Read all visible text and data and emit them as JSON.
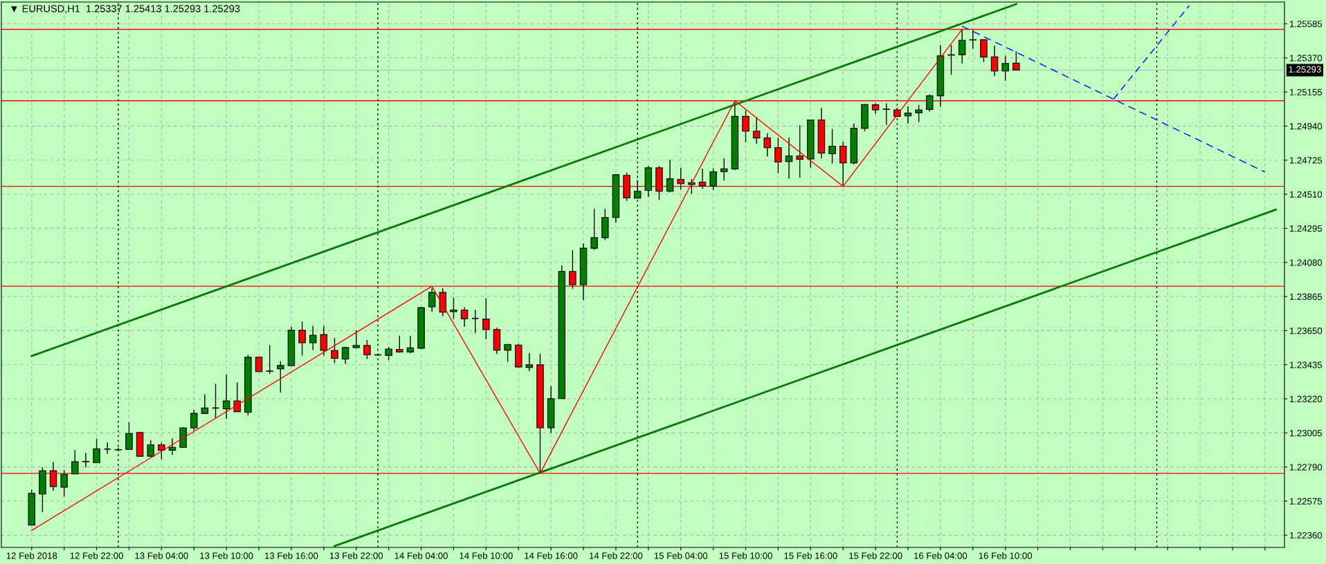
{
  "chart_data": {
    "type": "candlestick",
    "title": "▼ EURUSD,H1  1.25337 1.25413 1.25293 1.25293",
    "x": [
      "2018-02-12T16:00",
      "2018-02-12T17:00",
      "2018-02-12T18:00",
      "2018-02-12T19:00",
      "2018-02-12T20:00",
      "2018-02-12T21:00",
      "2018-02-12T22:00",
      "2018-02-12T23:00",
      "2018-02-13T00:00",
      "2018-02-13T01:00",
      "2018-02-13T02:00",
      "2018-02-13T03:00",
      "2018-02-13T04:00",
      "2018-02-13T05:00",
      "2018-02-13T06:00",
      "2018-02-13T07:00",
      "2018-02-13T08:00",
      "2018-02-13T09:00",
      "2018-02-13T10:00",
      "2018-02-13T11:00",
      "2018-02-13T12:00",
      "2018-02-13T13:00",
      "2018-02-13T14:00",
      "2018-02-13T15:00",
      "2018-02-13T16:00",
      "2018-02-13T17:00",
      "2018-02-13T18:00",
      "2018-02-13T19:00",
      "2018-02-13T20:00",
      "2018-02-13T21:00",
      "2018-02-13T22:00",
      "2018-02-13T23:00",
      "2018-02-14T00:00",
      "2018-02-14T01:00",
      "2018-02-14T02:00",
      "2018-02-14T03:00",
      "2018-02-14T04:00",
      "2018-02-14T05:00",
      "2018-02-14T06:00",
      "2018-02-14T07:00",
      "2018-02-14T08:00",
      "2018-02-14T09:00",
      "2018-02-14T10:00",
      "2018-02-14T11:00",
      "2018-02-14T12:00",
      "2018-02-14T13:00",
      "2018-02-14T14:00",
      "2018-02-14T15:00",
      "2018-02-14T16:00",
      "2018-02-14T17:00",
      "2018-02-14T18:00",
      "2018-02-14T19:00",
      "2018-02-14T20:00",
      "2018-02-14T21:00",
      "2018-02-14T22:00",
      "2018-02-14T23:00",
      "2018-02-15T00:00",
      "2018-02-15T01:00",
      "2018-02-15T02:00",
      "2018-02-15T03:00",
      "2018-02-15T04:00",
      "2018-02-15T05:00",
      "2018-02-15T06:00",
      "2018-02-15T07:00",
      "2018-02-15T08:00",
      "2018-02-15T09:00",
      "2018-02-15T10:00",
      "2018-02-15T11:00",
      "2018-02-15T12:00",
      "2018-02-15T13:00",
      "2018-02-15T14:00",
      "2018-02-15T15:00",
      "2018-02-15T16:00",
      "2018-02-15T17:00",
      "2018-02-15T18:00",
      "2018-02-15T19:00",
      "2018-02-15T20:00",
      "2018-02-15T21:00",
      "2018-02-15T22:00",
      "2018-02-15T23:00",
      "2018-02-16T00:00",
      "2018-02-16T01:00",
      "2018-02-16T02:00",
      "2018-02-16T03:00",
      "2018-02-16T04:00",
      "2018-02-16T05:00",
      "2018-02-16T06:00",
      "2018-02-16T07:00",
      "2018-02-16T08:00",
      "2018-02-16T09:00",
      "2018-02-16T10:00",
      "2018-02-16T11:00"
    ],
    "ohlc": [
      [
        1.22424,
        1.22646,
        1.22424,
        1.22624
      ],
      [
        1.2262,
        1.22789,
        1.22506,
        1.22767
      ],
      [
        1.22767,
        1.22821,
        1.2264,
        1.22667
      ],
      [
        1.22662,
        1.22771,
        1.22605,
        1.22744
      ],
      [
        1.22746,
        1.22896,
        1.22746,
        1.22823
      ],
      [
        1.22823,
        1.22878,
        1.22787,
        1.22825
      ],
      [
        1.22817,
        1.22969,
        1.22817,
        1.22905
      ],
      [
        1.22903,
        1.22946,
        1.22873,
        1.22903
      ],
      [
        1.22898,
        1.22912,
        1.22892,
        1.229
      ],
      [
        1.22901,
        1.23073,
        1.22901,
        1.23001
      ],
      [
        1.23007,
        1.23012,
        1.22856,
        1.22858
      ],
      [
        1.22858,
        1.2296,
        1.22856,
        1.2293
      ],
      [
        1.2293,
        1.22944,
        1.22839,
        1.22896
      ],
      [
        1.22896,
        1.22971,
        1.22867,
        1.22914
      ],
      [
        1.22914,
        1.23041,
        1.22912,
        1.23037
      ],
      [
        1.23037,
        1.2315,
        1.23021,
        1.23128
      ],
      [
        1.23128,
        1.23248,
        1.23124,
        1.23162
      ],
      [
        1.23162,
        1.23316,
        1.23096,
        1.23162
      ],
      [
        1.23157,
        1.23373,
        1.23094,
        1.23207
      ],
      [
        1.23207,
        1.23323,
        1.23139,
        1.23139
      ],
      [
        1.23135,
        1.23498,
        1.23116,
        1.23482
      ],
      [
        1.23482,
        1.23482,
        1.23391,
        1.23391
      ],
      [
        1.23396,
        1.23559,
        1.23378,
        1.23394
      ],
      [
        1.23409,
        1.23457,
        1.23259,
        1.2343
      ],
      [
        1.2343,
        1.23675,
        1.23426,
        1.23652
      ],
      [
        1.23652,
        1.23707,
        1.23493,
        1.23573
      ],
      [
        1.23573,
        1.2368,
        1.23527,
        1.23621
      ],
      [
        1.23625,
        1.2368,
        1.23493,
        1.23525
      ],
      [
        1.23525,
        1.23605,
        1.23446,
        1.23475
      ],
      [
        1.23471,
        1.23548,
        1.23441,
        1.23543
      ],
      [
        1.23543,
        1.23652,
        1.23539,
        1.23557
      ],
      [
        1.23557,
        1.23591,
        1.23471,
        1.23498
      ],
      [
        1.23498,
        1.23503,
        1.23491,
        1.23496
      ],
      [
        1.23494,
        1.23548,
        1.23464,
        1.23534
      ],
      [
        1.23532,
        1.23618,
        1.23511,
        1.23516
      ],
      [
        1.23516,
        1.23618,
        1.23507,
        1.23541
      ],
      [
        1.23539,
        1.238,
        1.23534,
        1.23795
      ],
      [
        1.238,
        1.23918,
        1.23768,
        1.23891
      ],
      [
        1.23891,
        1.23918,
        1.23741,
        1.23766
      ],
      [
        1.2377,
        1.23859,
        1.23725,
        1.2378
      ],
      [
        1.2378,
        1.23798,
        1.23675,
        1.23725
      ],
      [
        1.23727,
        1.23782,
        1.23634,
        1.23727
      ],
      [
        1.23723,
        1.23855,
        1.23596,
        1.23657
      ],
      [
        1.23657,
        1.23668,
        1.23502,
        1.23527
      ],
      [
        1.23527,
        1.23568,
        1.23453,
        1.23562
      ],
      [
        1.23559,
        1.23566,
        1.23416,
        1.23421
      ],
      [
        1.23418,
        1.23509,
        1.23396,
        1.23434
      ],
      [
        1.23434,
        1.23505,
        1.22755,
        1.23037
      ],
      [
        1.23037,
        1.233,
        1.23005,
        1.23221
      ],
      [
        1.23221,
        1.24061,
        1.23221,
        1.24023
      ],
      [
        1.24023,
        1.24157,
        1.23914,
        1.23939
      ],
      [
        1.23939,
        1.242,
        1.23843,
        1.2417
      ],
      [
        1.2417,
        1.24418,
        1.24159,
        1.24236
      ],
      [
        1.24236,
        1.24418,
        1.2422,
        1.24363
      ],
      [
        1.24363,
        1.24638,
        1.24331,
        1.24633
      ],
      [
        1.24629,
        1.24647,
        1.24468,
        1.24488
      ],
      [
        1.24486,
        1.24599,
        1.24484,
        1.24529
      ],
      [
        1.24534,
        1.24688,
        1.24493,
        1.24677
      ],
      [
        1.24677,
        1.24688,
        1.24474,
        1.24529
      ],
      [
        1.24529,
        1.24727,
        1.24522,
        1.24608
      ],
      [
        1.24604,
        1.24677,
        1.2454,
        1.24577
      ],
      [
        1.24572,
        1.24606,
        1.24513,
        1.24583
      ],
      [
        1.24586,
        1.24672,
        1.24545,
        1.24563
      ],
      [
        1.24561,
        1.24674,
        1.24536,
        1.24652
      ],
      [
        1.24652,
        1.24736,
        1.24597,
        1.2467
      ],
      [
        1.2467,
        1.25092,
        1.24663,
        1.25001
      ],
      [
        1.25001,
        1.25038,
        1.24838,
        1.24908
      ],
      [
        1.24908,
        1.24997,
        1.24829,
        1.24865
      ],
      [
        1.24865,
        1.24895,
        1.24749,
        1.24804
      ],
      [
        1.24804,
        1.24867,
        1.24643,
        1.24713
      ],
      [
        1.24717,
        1.24867,
        1.24608,
        1.24752
      ],
      [
        1.24752,
        1.24945,
        1.24615,
        1.24731
      ],
      [
        1.24733,
        1.24979,
        1.24677,
        1.24979
      ],
      [
        1.24979,
        1.25054,
        1.24736,
        1.2477
      ],
      [
        1.24765,
        1.24922,
        1.24704,
        1.24813
      ],
      [
        1.24813,
        1.2484,
        1.24565,
        1.24708
      ],
      [
        1.24708,
        1.24956,
        1.24699,
        1.24926
      ],
      [
        1.24926,
        1.2508,
        1.24908,
        1.25076
      ],
      [
        1.25074,
        1.25083,
        1.25017,
        1.25042
      ],
      [
        1.25047,
        1.25083,
        1.24947,
        1.25045
      ],
      [
        1.25042,
        1.25056,
        1.24997,
        1.25001
      ],
      [
        1.25004,
        1.25065,
        1.24956,
        1.25022
      ],
      [
        1.25024,
        1.25074,
        1.24965,
        1.25042
      ],
      [
        1.25045,
        1.2514,
        1.25031,
        1.25131
      ],
      [
        1.25131,
        1.25451,
        1.25063,
        1.25383
      ],
      [
        1.2539,
        1.25451,
        1.25263,
        1.25387
      ],
      [
        1.2539,
        1.25549,
        1.25335,
        1.25481
      ],
      [
        1.25485,
        1.25546,
        1.25428,
        1.25483
      ],
      [
        1.25485,
        1.25485,
        1.25344,
        1.25376
      ],
      [
        1.25376,
        1.25446,
        1.25256,
        1.25287
      ],
      [
        1.25287,
        1.25383,
        1.25226,
        1.25335
      ],
      [
        1.25337,
        1.25413,
        1.25293,
        1.25293
      ]
    ],
    "colors": [
      "#008000",
      "#008000",
      "#ff0000",
      "#008000",
      "#008000",
      "#008000",
      "#008000",
      "#000000",
      "#008000",
      "#008000",
      "#ff0000",
      "#008000",
      "#ff0000",
      "#008000",
      "#008000",
      "#008000",
      "#008000",
      "#000000",
      "#008000",
      "#ff0000",
      "#008000",
      "#ff0000",
      "#ff0000",
      "#008000",
      "#008000",
      "#ff0000",
      "#008000",
      "#ff0000",
      "#ff0000",
      "#008000",
      "#008000",
      "#ff0000",
      "#ff0000",
      "#008000",
      "#ff0000",
      "#008000",
      "#008000",
      "#008000",
      "#ff0000",
      "#008000",
      "#ff0000",
      "#000000",
      "#ff0000",
      "#ff0000",
      "#008000",
      "#ff0000",
      "#008000",
      "#ff0000",
      "#008000",
      "#008000",
      "#ff0000",
      "#008000",
      "#008000",
      "#008000",
      "#008000",
      "#ff0000",
      "#008000",
      "#008000",
      "#ff0000",
      "#008000",
      "#ff0000",
      "#008000",
      "#ff0000",
      "#008000",
      "#008000",
      "#008000",
      "#ff0000",
      "#ff0000",
      "#ff0000",
      "#ff0000",
      "#008000",
      "#ff0000",
      "#008000",
      "#ff0000",
      "#008000",
      "#ff0000",
      "#008000",
      "#008000",
      "#ff0000",
      "#ff0000",
      "#ff0000",
      "#008000",
      "#008000",
      "#008000",
      "#008000",
      "#ff0000",
      "#008000",
      "#ff0000",
      "#ff0000",
      "#ff0000",
      "#008000",
      "#ff0000"
    ],
    "series": [
      {
        "type": "line",
        "x": [
          "2018-02-12T16:00",
          "2018-02-16T11:00"
        ],
        "values": [
          1.2349,
          1.25709
        ],
        "color": "#007800",
        "line_style": "solid"
      },
      {
        "type": "line",
        "x": [
          "2018-02-13T20:00",
          "2018-02-17T11:00"
        ],
        "values": [
          1.22292,
          1.24413
        ],
        "color": "#007800",
        "line_style": "solid"
      },
      {
        "type": "line",
        "x": [
          "2018-02-12T16:00",
          "2018-02-14T05:00",
          "2018-02-14T15:00",
          "2018-02-15T09:00",
          "2018-02-15T19:00",
          "2018-02-16T06:00"
        ],
        "values": [
          1.2239,
          1.2393,
          1.2275,
          1.251,
          1.2456,
          1.2555
        ],
        "color": "#ff0000",
        "line_style": "solid"
      },
      {
        "type": "line",
        "x": [
          "2018-02-16T06:00",
          "2018-02-17T10:00"
        ],
        "values": [
          1.2557,
          1.2465
        ],
        "color": "#0000ff",
        "line_style": "dashed"
      },
      {
        "type": "line",
        "x": [
          "2018-02-16T20:00",
          "2018-02-17T03:00"
        ],
        "values": [
          1.2511,
          1.257
        ],
        "color": "#0000ff",
        "line_style": "dashed"
      }
    ],
    "ref_lines": [
      {
        "axis": "y",
        "value": 1.2555,
        "color": "#ff0000",
        "line_style": "solid"
      },
      {
        "axis": "y",
        "value": 1.251,
        "color": "#ff0000",
        "line_style": "solid"
      },
      {
        "axis": "y",
        "value": 1.2456,
        "color": "#ff0000",
        "line_style": "solid"
      },
      {
        "axis": "y",
        "value": 1.2393,
        "color": "#ff0000",
        "line_style": "solid"
      },
      {
        "axis": "y",
        "value": 1.2275,
        "color": "#ff0000",
        "line_style": "solid"
      },
      {
        "axis": "y",
        "value": 1.25293,
        "label": "1.25293",
        "color": "#c0c0c0",
        "line_style": "solid"
      },
      {
        "axis": "x",
        "value": "2018-02-13T00:00",
        "color": "#000000",
        "line_style": "dotted"
      },
      {
        "axis": "x",
        "value": "2018-02-14T00:00",
        "color": "#000000",
        "line_style": "dotted"
      },
      {
        "axis": "x",
        "value": "2018-02-15T00:00",
        "color": "#000000",
        "line_style": "dotted"
      },
      {
        "axis": "x",
        "value": "2018-02-16T00:00",
        "color": "#000000",
        "line_style": "dotted"
      },
      {
        "axis": "x",
        "value": "2018-02-17T00:00",
        "color": "#000000",
        "line_style": "dotted"
      }
    ],
    "xlim": [
      "2018-02-12T13:12",
      "2018-02-17T11:48"
    ],
    "ylim": [
      1.22283,
      1.25722
    ],
    "xticks": [
      {
        "value": "2018-02-12T16:00",
        "label": "12 Feb 2018"
      },
      {
        "value": "2018-02-12T19:00",
        "label": null
      },
      {
        "value": "2018-02-12T22:00",
        "label": "12 Feb 22:00"
      },
      {
        "value": "2018-02-13T01:00",
        "label": null
      },
      {
        "value": "2018-02-13T04:00",
        "label": "13 Feb 04:00"
      },
      {
        "value": "2018-02-13T07:00",
        "label": null
      },
      {
        "value": "2018-02-13T10:00",
        "label": "13 Feb 10:00"
      },
      {
        "value": "2018-02-13T13:00",
        "label": null
      },
      {
        "value": "2018-02-13T16:00",
        "label": "13 Feb 16:00"
      },
      {
        "value": "2018-02-13T19:00",
        "label": null
      },
      {
        "value": "2018-02-13T22:00",
        "label": "13 Feb 22:00"
      },
      {
        "value": "2018-02-14T01:00",
        "label": null
      },
      {
        "value": "2018-02-14T04:00",
        "label": "14 Feb 04:00"
      },
      {
        "value": "2018-02-14T07:00",
        "label": null
      },
      {
        "value": "2018-02-14T10:00",
        "label": "14 Feb 10:00"
      },
      {
        "value": "2018-02-14T13:00",
        "label": null
      },
      {
        "value": "2018-02-14T16:00",
        "label": "14 Feb 16:00"
      },
      {
        "value": "2018-02-14T19:00",
        "label": null
      },
      {
        "value": "2018-02-14T22:00",
        "label": "14 Feb 22:00"
      },
      {
        "value": "2018-02-15T01:00",
        "label": null
      },
      {
        "value": "2018-02-15T04:00",
        "label": "15 Feb 04:00"
      },
      {
        "value": "2018-02-15T07:00",
        "label": null
      },
      {
        "value": "2018-02-15T10:00",
        "label": "15 Feb 10:00"
      },
      {
        "value": "2018-02-15T13:00",
        "label": null
      },
      {
        "value": "2018-02-15T16:00",
        "label": "15 Feb 16:00"
      },
      {
        "value": "2018-02-15T19:00",
        "label": null
      },
      {
        "value": "2018-02-15T22:00",
        "label": "15 Feb 22:00"
      },
      {
        "value": "2018-02-16T01:00",
        "label": null
      },
      {
        "value": "2018-02-16T04:00",
        "label": "16 Feb 04:00"
      },
      {
        "value": "2018-02-16T07:00",
        "label": null
      },
      {
        "value": "2018-02-16T10:00",
        "label": "16 Feb 10:00"
      },
      {
        "value": "2018-02-16T13:00",
        "label": null
      },
      {
        "value": "2018-02-16T16:00",
        "label": null
      },
      {
        "value": "2018-02-16T19:00",
        "label": null
      },
      {
        "value": "2018-02-16T22:00",
        "label": null
      },
      {
        "value": "2018-02-17T01:00",
        "label": null
      },
      {
        "value": "2018-02-17T04:00",
        "label": null
      },
      {
        "value": "2018-02-17T07:00",
        "label": null
      },
      {
        "value": "2018-02-17T10:00",
        "label": null
      }
    ],
    "yticks": [
      {
        "value": 1.2236,
        "label": "1.22360"
      },
      {
        "value": 1.22575,
        "label": "1.22575"
      },
      {
        "value": 1.2279,
        "label": "1.22790"
      },
      {
        "value": 1.23005,
        "label": "1.23005"
      },
      {
        "value": 1.2322,
        "label": "1.23220"
      },
      {
        "value": 1.23435,
        "label": "1.23435"
      },
      {
        "value": 1.2365,
        "label": "1.23650"
      },
      {
        "value": 1.23865,
        "label": "1.23865"
      },
      {
        "value": 1.2408,
        "label": "1.24080"
      },
      {
        "value": 1.24295,
        "label": "1.24295"
      },
      {
        "value": 1.2451,
        "label": "1.24510"
      },
      {
        "value": 1.24725,
        "label": "1.24725"
      },
      {
        "value": 1.2494,
        "label": "1.24940"
      },
      {
        "value": 1.25155,
        "label": "1.25155"
      },
      {
        "value": 1.2537,
        "label": "1.25370"
      },
      {
        "value": 1.25585,
        "label": "1.25585"
      }
    ],
    "grid": true
  }
}
